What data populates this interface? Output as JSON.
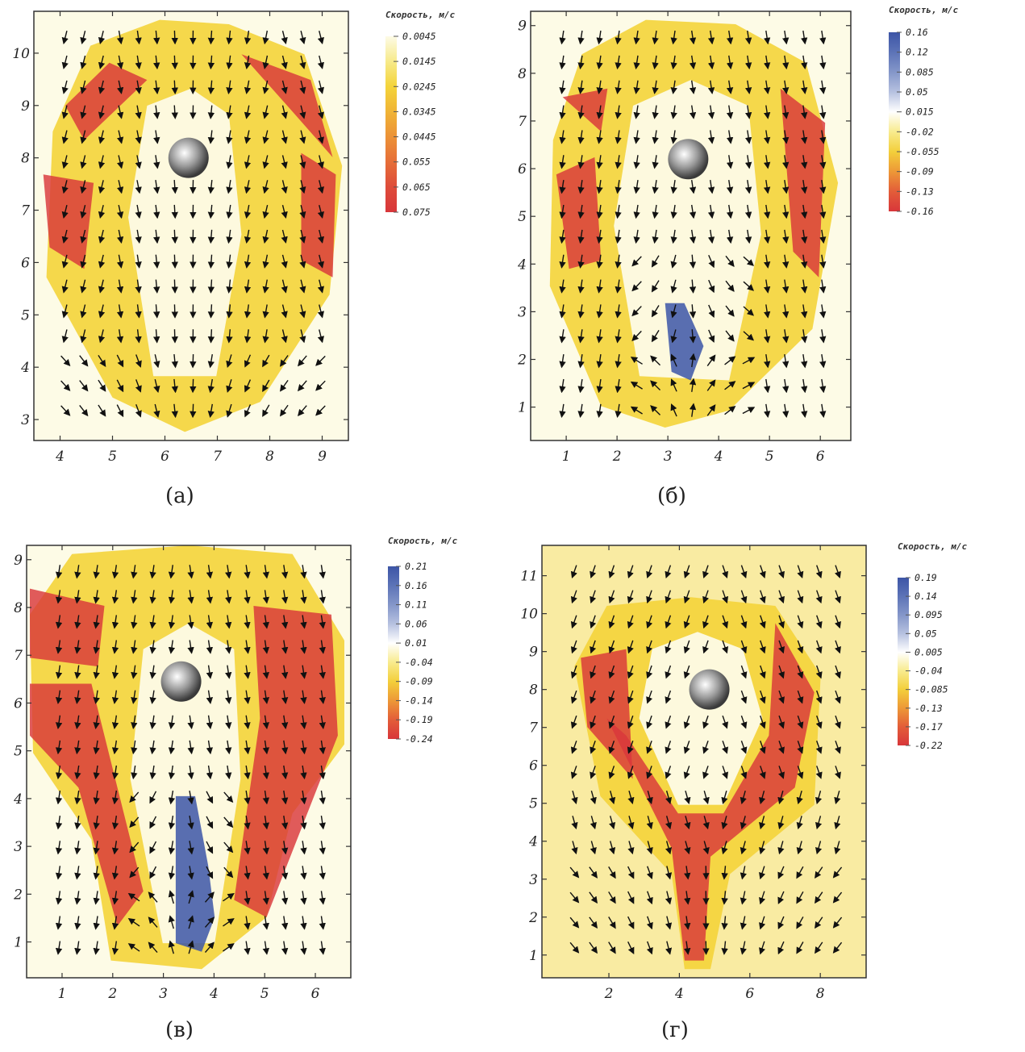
{
  "colors": {
    "background": "#ffffff",
    "frame": "#333333",
    "field_low": "#fdfbe6",
    "field_mid": "#f4d43a",
    "field_high": "#d9373a",
    "field_negative": "#3c56a8",
    "arrow": "#111111"
  },
  "icons": {
    "sphere": "sphere-icon",
    "arrow": "vector-arrow-icon"
  },
  "chart_data": [
    {
      "type": "heatmap",
      "caption": "(а)",
      "xlim": [
        3.5,
        9.5
      ],
      "ylim": [
        2.6,
        10.8
      ],
      "x_ticks": [
        "4",
        "5",
        "6",
        "7",
        "8",
        "9"
      ],
      "y_ticks": [
        "3",
        "4",
        "5",
        "6",
        "7",
        "8",
        "9",
        "10"
      ],
      "sphere_center": [
        6.45,
        8.0
      ],
      "legend": {
        "title": "Скорость, м/с",
        "labels": [
          "0.0045",
          "0.0145",
          "0.0245",
          "0.0345",
          "0.0445",
          "0.055",
          "0.065",
          "0.075"
        ],
        "colors": [
          "#fdfbe6",
          "#f7ea8a",
          "#f4d43a",
          "#f0b436",
          "#ec9237",
          "#e66e38",
          "#de4c3a",
          "#d8363a"
        ]
      }
    },
    {
      "type": "heatmap",
      "caption": "(б)",
      "xlim": [
        0.3,
        6.6
      ],
      "ylim": [
        0.3,
        9.3
      ],
      "x_ticks": [
        "1",
        "2",
        "3",
        "4",
        "5",
        "6"
      ],
      "y_ticks": [
        "1",
        "2",
        "3",
        "4",
        "5",
        "6",
        "7",
        "8",
        "9"
      ],
      "sphere_center": [
        3.4,
        6.2
      ],
      "legend": {
        "title": "Скорость, м/с",
        "labels": [
          "0.16",
          "0.12",
          "0.085",
          "0.05",
          "0.015",
          "-0.02",
          "-0.055",
          "-0.09",
          "-0.13",
          "-0.16"
        ],
        "colors": [
          "#3d55a6",
          "#5c73b7",
          "#8496c9",
          "#b6c1e0",
          "#ffffff",
          "#f8eb8e",
          "#f3cf3b",
          "#ed9837",
          "#e35d39",
          "#d8363a"
        ]
      }
    },
    {
      "type": "heatmap",
      "caption": "(в)",
      "xlim": [
        0.3,
        6.7
      ],
      "ylim": [
        0.25,
        9.3
      ],
      "x_ticks": [
        "1",
        "2",
        "3",
        "4",
        "5",
        "6"
      ],
      "y_ticks": [
        "1",
        "2",
        "3",
        "4",
        "5",
        "6",
        "7",
        "8",
        "9"
      ],
      "sphere_center": [
        3.35,
        6.45
      ],
      "legend": {
        "title": "Скорость, м/с",
        "labels": [
          "0.21",
          "0.16",
          "0.11",
          "0.06",
          "0.01",
          "-0.04",
          "-0.09",
          "-0.14",
          "-0.19",
          "-0.24"
        ],
        "colors": [
          "#3d55a6",
          "#5c73b7",
          "#8496c9",
          "#b6c1e0",
          "#ffffff",
          "#f8eb8e",
          "#f3cf3b",
          "#ed9837",
          "#e35d39",
          "#d8363a"
        ]
      }
    },
    {
      "type": "heatmap",
      "caption": "(г)",
      "xlim": [
        0.1,
        9.3
      ],
      "ylim": [
        0.4,
        11.8
      ],
      "x_ticks": [
        "2",
        "4",
        "6",
        "8"
      ],
      "y_ticks": [
        "1",
        "2",
        "3",
        "4",
        "5",
        "6",
        "7",
        "8",
        "9",
        "10",
        "11"
      ],
      "sphere_center": [
        4.85,
        8.0
      ],
      "legend": {
        "title": "Скорость, м/с",
        "labels": [
          "0.19",
          "0.14",
          "0.095",
          "0.05",
          "0.005",
          "-0.04",
          "-0.085",
          "-0.13",
          "-0.17",
          "-0.22"
        ],
        "colors": [
          "#3d55a6",
          "#5c73b7",
          "#8496c9",
          "#b6c1e0",
          "#ffffff",
          "#f8eb8e",
          "#f3cf3b",
          "#ed9837",
          "#e35d39",
          "#d8363a"
        ]
      }
    }
  ]
}
